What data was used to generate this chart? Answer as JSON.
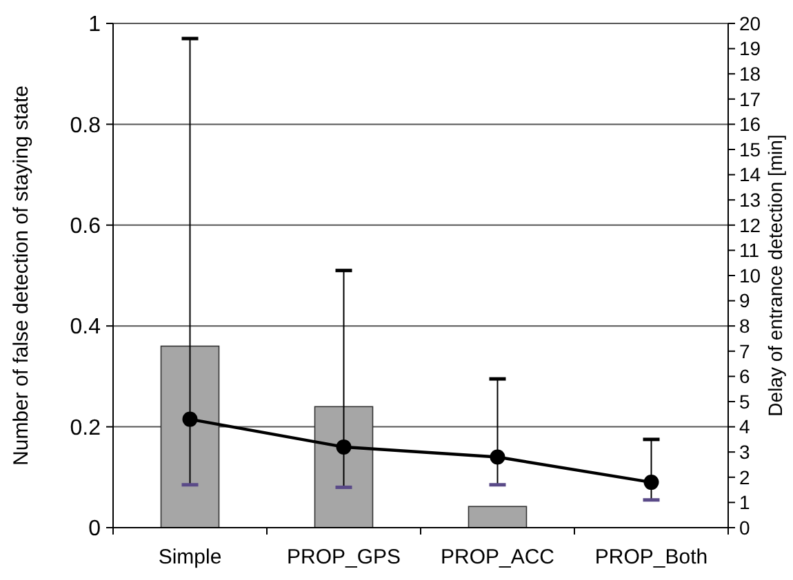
{
  "chart_data": {
    "type": "bar",
    "categories": [
      "Simple",
      "PROP_GPS",
      "PROP_ACC",
      "PROP_Both"
    ],
    "ylabel": "Number of false detection of staying state",
    "y2label": "Delay of entrance detection [min]",
    "series": [
      {
        "color": "#a6a6a6",
        "values": [
          0.36,
          0.24,
          0.042,
          0
        ]
      },
      {
        "type": "line",
        "axis": "y2",
        "color": "#000000",
        "marker": "circle",
        "line_style": "solid",
        "values": [
          4.3,
          3.2,
          2.8,
          1.8
        ],
        "errors": [
          [
            1.7,
            19.4
          ],
          [
            1.6,
            10.2
          ],
          [
            1.7,
            5.9
          ],
          [
            1.1,
            3.5
          ]
        ]
      }
    ],
    "ylim": [
      0,
      1
    ],
    "yticks": [
      0,
      0.2,
      0.4,
      0.6,
      0.8,
      1
    ],
    "y2lim": [
      0,
      20
    ],
    "y2ticks": [
      0,
      1,
      2,
      3,
      4,
      5,
      6,
      7,
      8,
      9,
      10,
      11,
      12,
      13,
      14,
      15,
      16,
      17,
      18,
      19,
      20
    ],
    "grid": "y"
  }
}
